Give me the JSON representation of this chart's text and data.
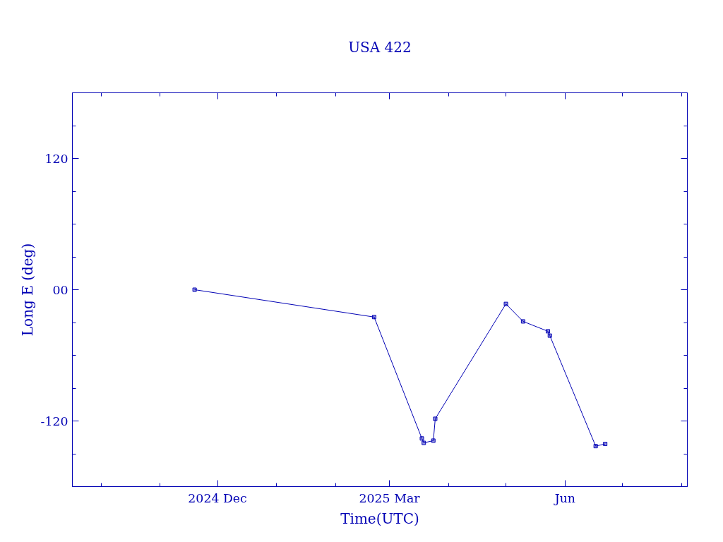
{
  "chart_data": {
    "type": "line",
    "title": "USA 422",
    "xlabel": "Time(UTC)",
    "ylabel": "Long E (deg)",
    "x": [
      "2024-11-19",
      "2025-02-21",
      "2025-03-18",
      "2025-03-19",
      "2025-03-24",
      "2025-03-25",
      "2025-05-01",
      "2025-05-10",
      "2025-05-23",
      "2025-05-24",
      "2025-06-17",
      "2025-06-22"
    ],
    "series": [
      {
        "color": "#0000b4",
        "values": [
          0,
          -25,
          -136,
          -140,
          -138,
          -118,
          -13,
          -29,
          -38,
          -42,
          -143,
          -141
        ]
      }
    ],
    "marker": "square",
    "line_style": "solid",
    "grid": false,
    "xlim": [
      "2024-09-16",
      "2025-08-04"
    ],
    "xticks": [
      {
        "value": "2024-10-01",
        "label": null
      },
      {
        "value": "2024-11-01",
        "label": null
      },
      {
        "value": "2024-12-01",
        "label": "2024 Dec"
      },
      {
        "value": "2025-01-01",
        "label": null
      },
      {
        "value": "2025-02-01",
        "label": null
      },
      {
        "value": "2025-03-01",
        "label": "2025 Mar"
      },
      {
        "value": "2025-04-01",
        "label": null
      },
      {
        "value": "2025-05-01",
        "label": null
      },
      {
        "value": "2025-06-01",
        "label": "Jun"
      },
      {
        "value": "2025-07-01",
        "label": null
      },
      {
        "value": "2025-08-01",
        "label": null
      }
    ],
    "ylim": [
      -180,
      180
    ],
    "yticks": [
      {
        "value": -150,
        "label": null
      },
      {
        "value": -120,
        "label": "-120"
      },
      {
        "value": -90,
        "label": null
      },
      {
        "value": -60,
        "label": null
      },
      {
        "value": -30,
        "label": null
      },
      {
        "value": 0,
        "label": "00"
      },
      {
        "value": 30,
        "label": null
      },
      {
        "value": 60,
        "label": null
      },
      {
        "value": 90,
        "label": null
      },
      {
        "value": 120,
        "label": "120"
      },
      {
        "value": 150,
        "label": null
      }
    ]
  }
}
